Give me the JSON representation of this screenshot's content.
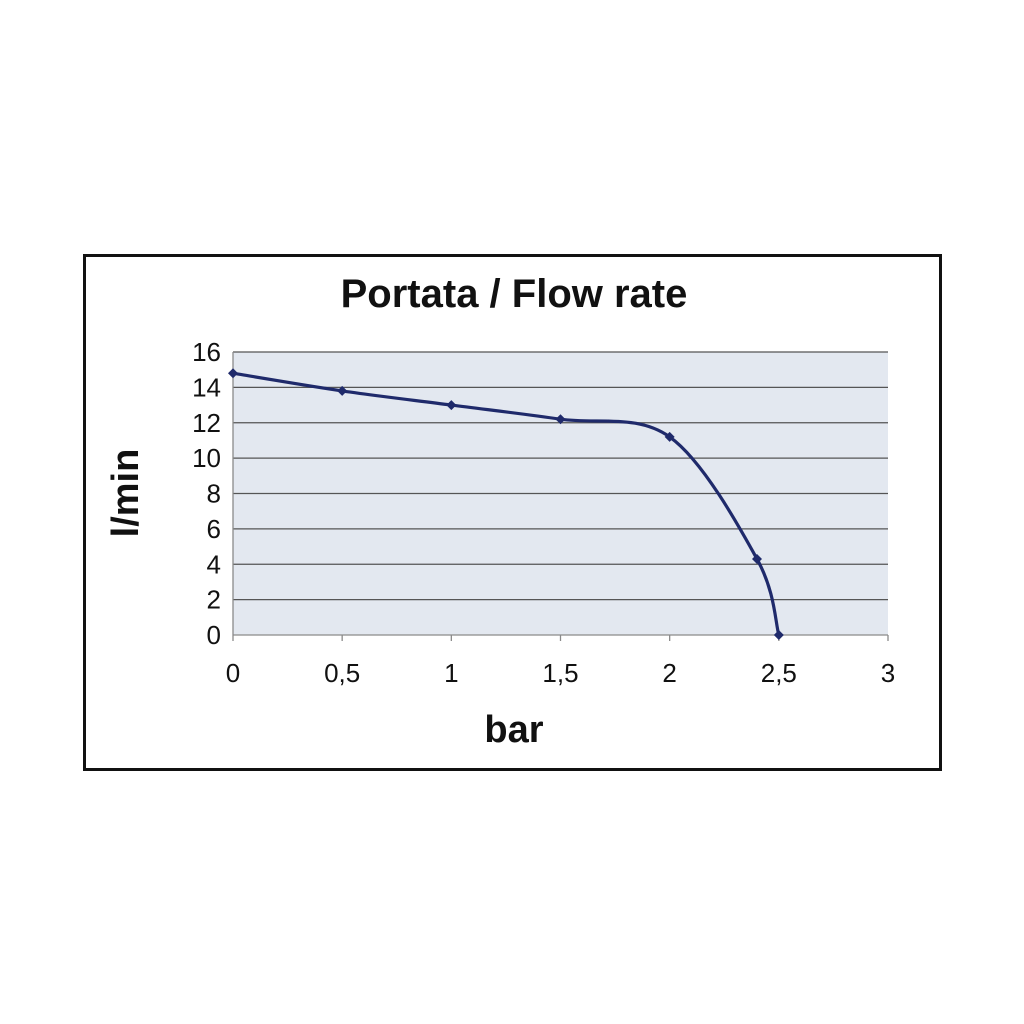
{
  "chart_data": {
    "type": "line",
    "title": "Portata / Flow rate",
    "xlabel": "bar",
    "ylabel": "l/min",
    "xlim": [
      0,
      3
    ],
    "ylim": [
      0,
      16
    ],
    "x_ticks": [
      "0",
      "0,5",
      "1",
      "1,5",
      "2",
      "2,5",
      "3"
    ],
    "x_tick_values": [
      0,
      0.5,
      1,
      1.5,
      2,
      2.5,
      3
    ],
    "y_ticks": [
      "0",
      "2",
      "4",
      "6",
      "8",
      "10",
      "12",
      "14",
      "16"
    ],
    "y_tick_values": [
      0,
      2,
      4,
      6,
      8,
      10,
      12,
      14,
      16
    ],
    "grid": true,
    "legend": "none",
    "series": [
      {
        "x": [
          0,
          0.5,
          1,
          1.5,
          2,
          2.4,
          2.5
        ],
        "y": [
          14.8,
          13.8,
          13.0,
          12.2,
          11.2,
          4.3,
          0
        ]
      }
    ],
    "colors": {
      "line": "#1f2a6b",
      "plot_background": "#e3e8f0",
      "gridline": "#555555",
      "frame": "#111111"
    }
  }
}
